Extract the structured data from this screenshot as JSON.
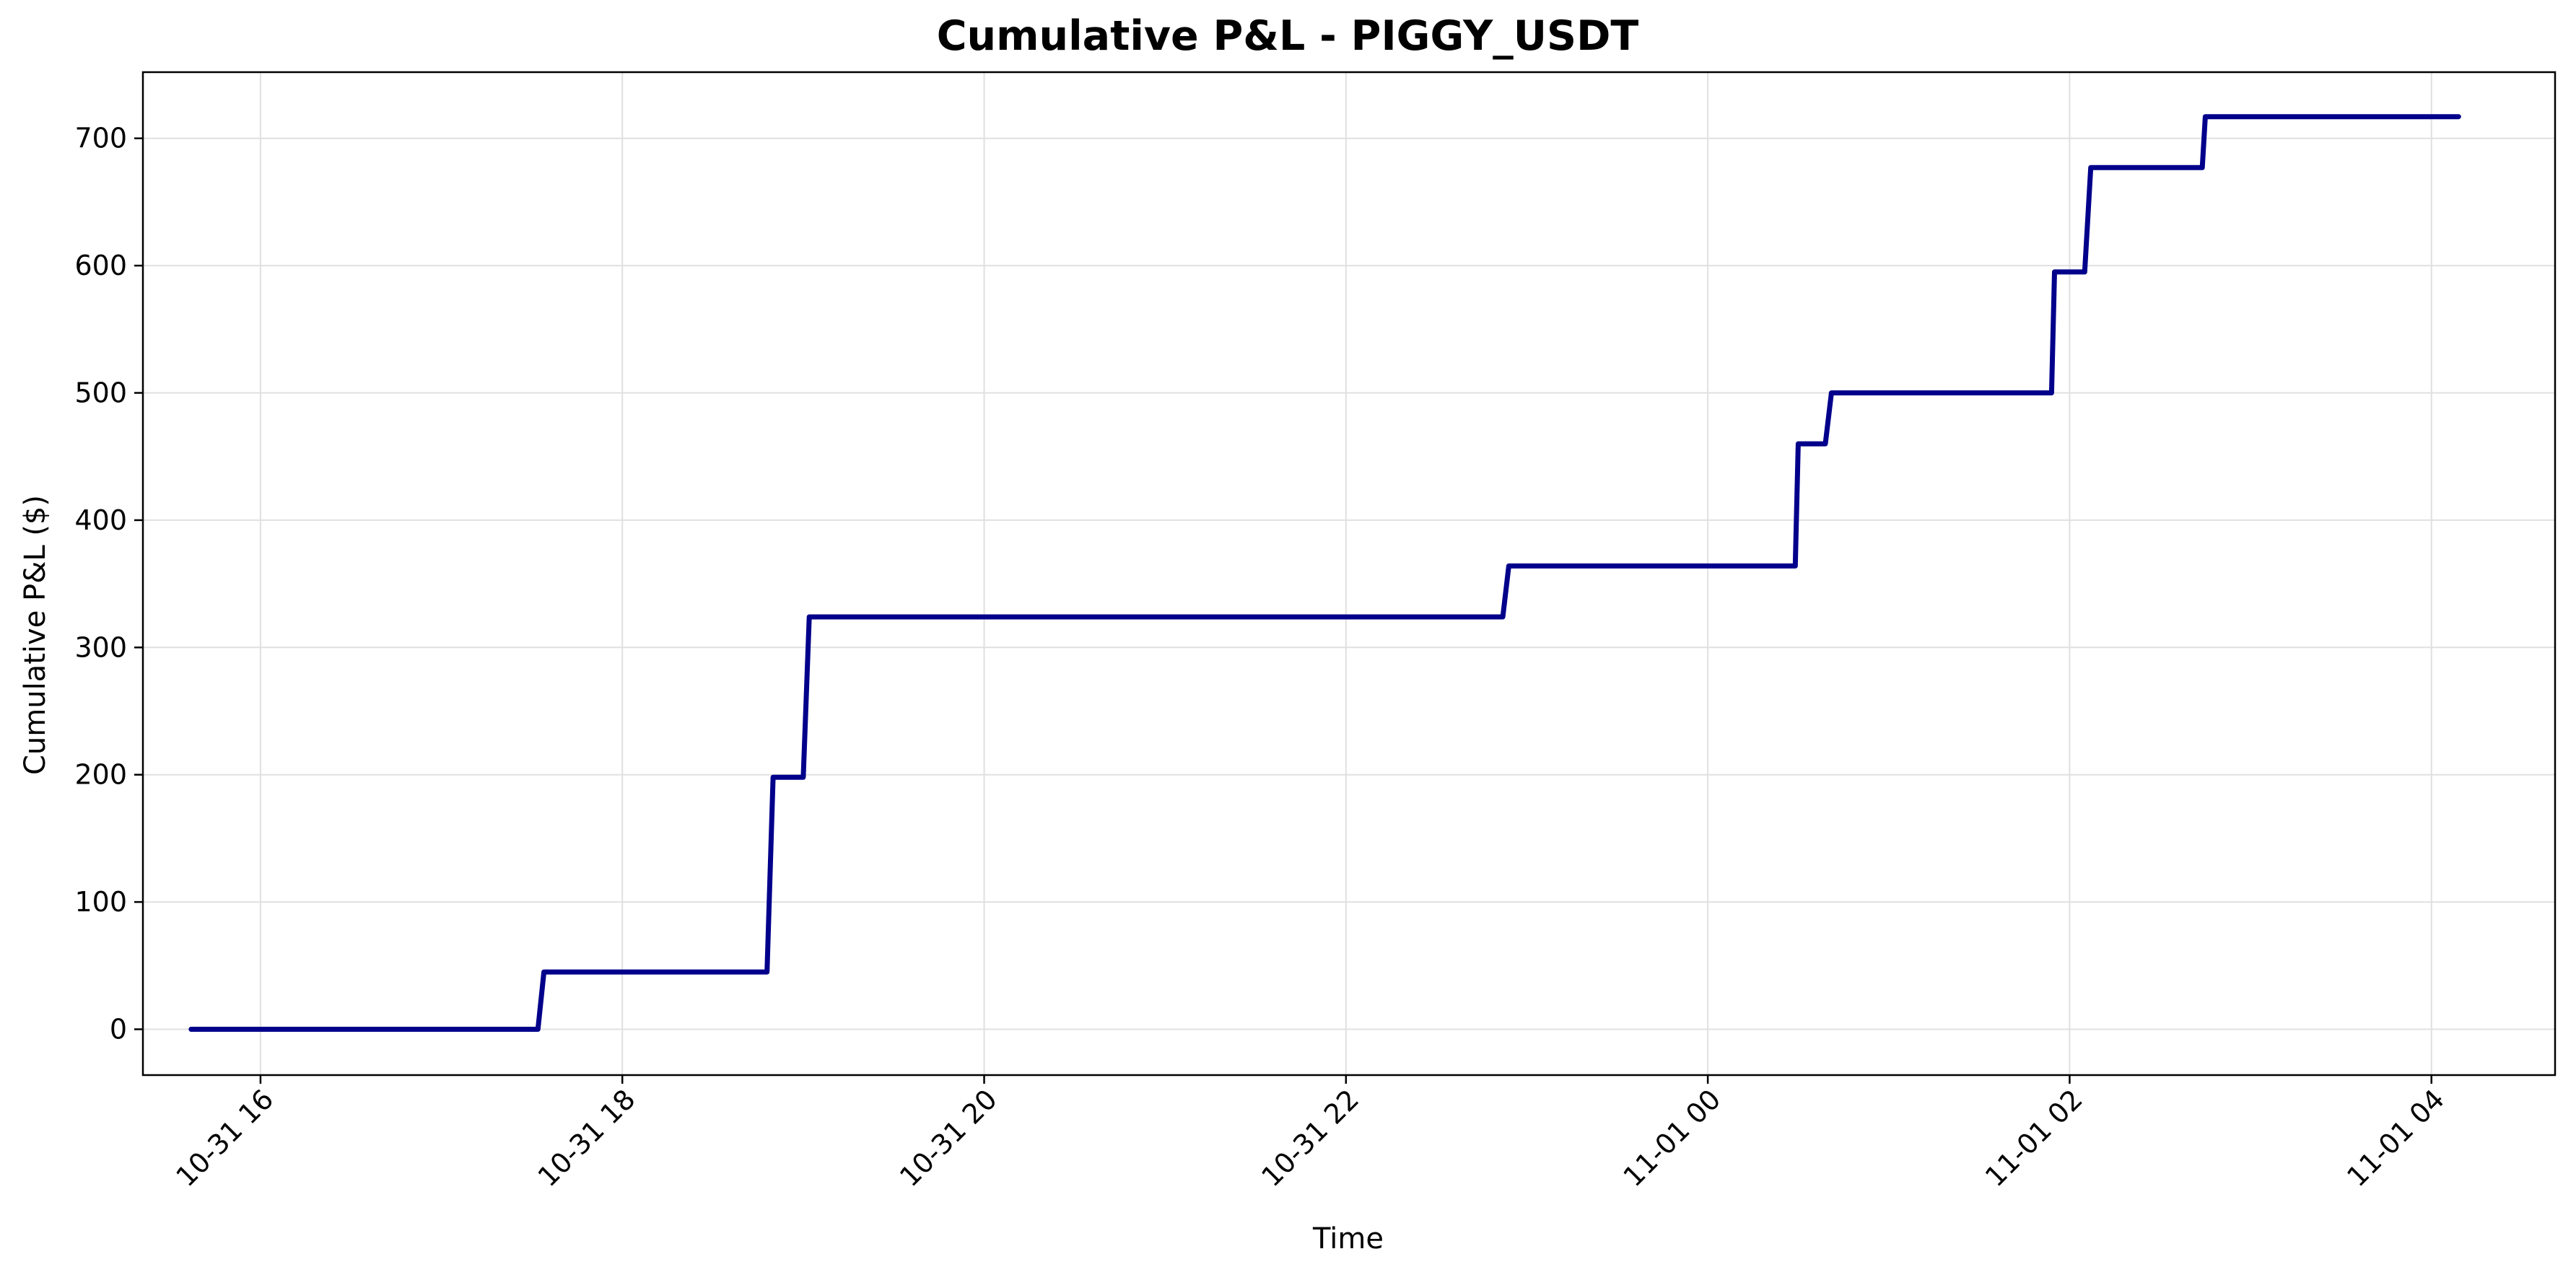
{
  "chart_data": {
    "type": "line",
    "title": "Cumulative P&L - PIGGY_USDT",
    "xlabel": "Time",
    "ylabel": "Cumulative P&L ($)",
    "x_axis_type": "datetime",
    "xlim": [
      "2025-10-31T15:21",
      "2025-11-01T04:41"
    ],
    "ylim": [
      -36,
      752
    ],
    "grid": true,
    "line_color": "#00008b",
    "x_ticks": [
      {
        "value": "2025-10-31T16:00",
        "label": "10-31 16"
      },
      {
        "value": "2025-10-31T18:00",
        "label": "10-31 18"
      },
      {
        "value": "2025-10-31T20:00",
        "label": "10-31 20"
      },
      {
        "value": "2025-10-31T22:00",
        "label": "10-31 22"
      },
      {
        "value": "2025-11-01T00:00",
        "label": "11-01 00"
      },
      {
        "value": "2025-11-01T02:00",
        "label": "11-01 02"
      },
      {
        "value": "2025-11-01T04:00",
        "label": "11-01 04"
      }
    ],
    "y_ticks": [
      0,
      100,
      200,
      300,
      400,
      500,
      600,
      700
    ],
    "series": [
      {
        "points": [
          {
            "x": "2025-10-31T15:37",
            "y": 0
          },
          {
            "x": "2025-10-31T17:32",
            "y": 0
          },
          {
            "x": "2025-10-31T17:34",
            "y": 45
          },
          {
            "x": "2025-10-31T18:48",
            "y": 45
          },
          {
            "x": "2025-10-31T18:50",
            "y": 198
          },
          {
            "x": "2025-10-31T19:00",
            "y": 198
          },
          {
            "x": "2025-10-31T19:02",
            "y": 324
          },
          {
            "x": "2025-10-31T22:52",
            "y": 324
          },
          {
            "x": "2025-10-31T22:54",
            "y": 364
          },
          {
            "x": "2025-11-01T00:29",
            "y": 364
          },
          {
            "x": "2025-11-01T00:30",
            "y": 460
          },
          {
            "x": "2025-11-01T00:39",
            "y": 460
          },
          {
            "x": "2025-11-01T00:41",
            "y": 500
          },
          {
            "x": "2025-11-01T01:54",
            "y": 500
          },
          {
            "x": "2025-11-01T01:55",
            "y": 595
          },
          {
            "x": "2025-11-01T02:05",
            "y": 595
          },
          {
            "x": "2025-11-01T02:07",
            "y": 677
          },
          {
            "x": "2025-11-01T02:44",
            "y": 677
          },
          {
            "x": "2025-11-01T02:45",
            "y": 717
          },
          {
            "x": "2025-11-01T04:09",
            "y": 717
          }
        ]
      }
    ]
  }
}
